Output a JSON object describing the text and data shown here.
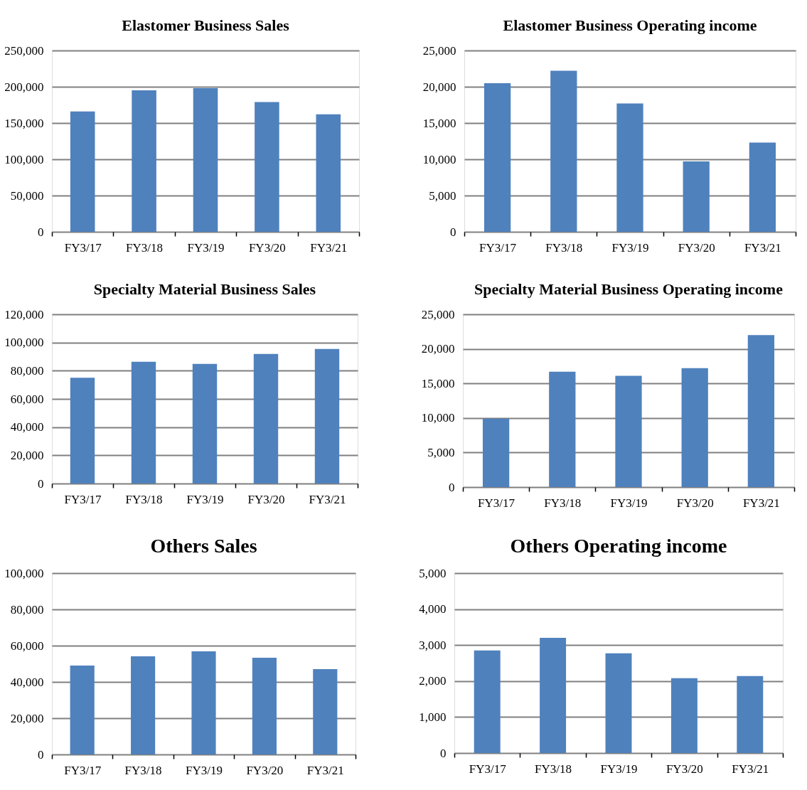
{
  "chart_data": [
    {
      "type": "bar",
      "title": "Elastomer Business Sales",
      "categories": [
        "FY3/17",
        "FY3/18",
        "FY3/19",
        "FY3/20",
        "FY3/21"
      ],
      "values": [
        166000,
        195000,
        198000,
        179000,
        162000
      ],
      "color": "#4f81bd",
      "ylim": [
        0,
        250000
      ],
      "yticks": [
        {
          "value": 0,
          "label": "0"
        },
        {
          "value": 50000,
          "label": "50,000"
        },
        {
          "value": 100000,
          "label": "100,000"
        },
        {
          "value": 150000,
          "label": "150,000"
        },
        {
          "value": 200000,
          "label": "200,000"
        },
        {
          "value": 250000,
          "label": "250,000"
        }
      ],
      "grid": "y"
    },
    {
      "type": "bar",
      "title": "Elastomer Business Operating income",
      "categories": [
        "FY3/17",
        "FY3/18",
        "FY3/19",
        "FY3/20",
        "FY3/21"
      ],
      "values": [
        20500,
        22200,
        17700,
        9700,
        12300
      ],
      "color": "#4f81bd",
      "ylim": [
        0,
        25000
      ],
      "yticks": [
        {
          "value": 0,
          "label": "0"
        },
        {
          "value": 5000,
          "label": "5,000"
        },
        {
          "value": 10000,
          "label": "10,000"
        },
        {
          "value": 15000,
          "label": "15,000"
        },
        {
          "value": 20000,
          "label": "20,000"
        },
        {
          "value": 25000,
          "label": "25,000"
        }
      ],
      "grid": "y"
    },
    {
      "type": "bar",
      "title": "Specialty Material Business Sales",
      "categories": [
        "FY3/17",
        "FY3/18",
        "FY3/19",
        "FY3/20",
        "FY3/21"
      ],
      "values": [
        75000,
        86300,
        84800,
        91900,
        95400
      ],
      "color": "#4f81bd",
      "ylim": [
        0,
        120000
      ],
      "yticks": [
        {
          "value": 0,
          "label": "0"
        },
        {
          "value": 20000,
          "label": "20,000"
        },
        {
          "value": 40000,
          "label": "40,000"
        },
        {
          "value": 60000,
          "label": "60,000"
        },
        {
          "value": 80000,
          "label": "80,000"
        },
        {
          "value": 100000,
          "label": "100,000"
        },
        {
          "value": 120000,
          "label": "120,000"
        }
      ],
      "grid": "y"
    },
    {
      "type": "bar",
      "title": "Specialty Material Business Operating income",
      "categories": [
        "FY3/17",
        "FY3/18",
        "FY3/19",
        "FY3/20",
        "FY3/21"
      ],
      "values": [
        9900,
        16700,
        16100,
        17200,
        22000
      ],
      "color": "#4f81bd",
      "ylim": [
        0,
        25000
      ],
      "yticks": [
        {
          "value": 0,
          "label": "0"
        },
        {
          "value": 5000,
          "label": "5,000"
        },
        {
          "value": 10000,
          "label": "10,000"
        },
        {
          "value": 15000,
          "label": "15,000"
        },
        {
          "value": 20000,
          "label": "20,000"
        },
        {
          "value": 25000,
          "label": "25,000"
        }
      ],
      "grid": "y"
    },
    {
      "type": "bar",
      "title": "Others Sales",
      "categories": [
        "FY3/17",
        "FY3/18",
        "FY3/19",
        "FY3/20",
        "FY3/21"
      ],
      "values": [
        49000,
        54100,
        56900,
        53300,
        47100
      ],
      "color": "#4f81bd",
      "ylim": [
        0,
        100000
      ],
      "yticks": [
        {
          "value": 0,
          "label": "0"
        },
        {
          "value": 20000,
          "label": "20,000"
        },
        {
          "value": 40000,
          "label": "40,000"
        },
        {
          "value": 60000,
          "label": "60,000"
        },
        {
          "value": 80000,
          "label": "80,000"
        },
        {
          "value": 100000,
          "label": "100,000"
        }
      ],
      "grid": "y"
    },
    {
      "type": "bar",
      "title": "Others Operating income",
      "categories": [
        "FY3/17",
        "FY3/18",
        "FY3/19",
        "FY3/20",
        "FY3/21"
      ],
      "values": [
        2850,
        3200,
        2770,
        2080,
        2140
      ],
      "color": "#4f81bd",
      "ylim": [
        0,
        5000
      ],
      "yticks": [
        {
          "value": 0,
          "label": "0"
        },
        {
          "value": 1000,
          "label": "1,000"
        },
        {
          "value": 2000,
          "label": "2,000"
        },
        {
          "value": 3000,
          "label": "3,000"
        },
        {
          "value": 4000,
          "label": "4,000"
        },
        {
          "value": 5000,
          "label": "5,000"
        }
      ],
      "grid": "y"
    }
  ]
}
